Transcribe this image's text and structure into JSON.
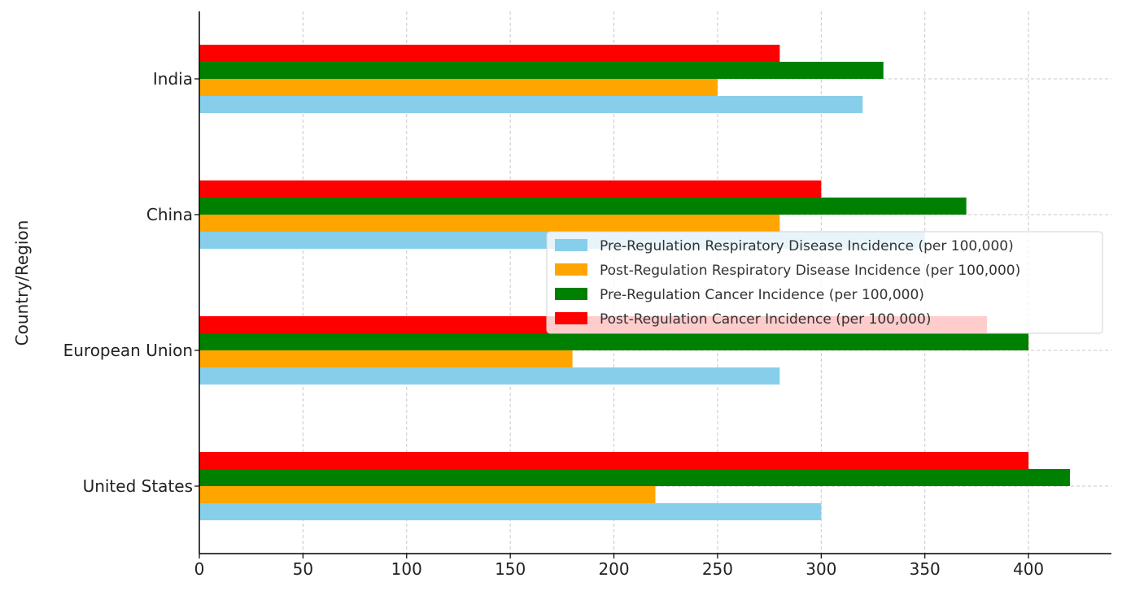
{
  "chart_data": {
    "type": "bar",
    "orientation": "horizontal",
    "categories": [
      "United States",
      "European Union",
      "China",
      "India"
    ],
    "series": [
      {
        "name": "Pre-Regulation Respiratory Disease Incidence (per 100,000)",
        "color": "#87ceeb",
        "values": [
          300,
          280,
          350,
          320
        ]
      },
      {
        "name": "Post-Regulation Respiratory Disease Incidence (per 100,000)",
        "color": "#ffa500",
        "values": [
          220,
          180,
          280,
          250
        ]
      },
      {
        "name": "Pre-Regulation Cancer Incidence (per 100,000)",
        "color": "#008000",
        "values": [
          420,
          400,
          370,
          330
        ]
      },
      {
        "name": "Post-Regulation Cancer Incidence (per 100,000)",
        "color": "#ff0000",
        "values": [
          400,
          380,
          300,
          280
        ]
      }
    ],
    "title": "",
    "xlabel": "",
    "ylabel": "Country/Region",
    "xlim": [
      0,
      440
    ],
    "xticks": [
      "0",
      "50",
      "100",
      "150",
      "200",
      "250",
      "300",
      "350",
      "400"
    ],
    "grid": true,
    "legend_position": "center-right"
  }
}
